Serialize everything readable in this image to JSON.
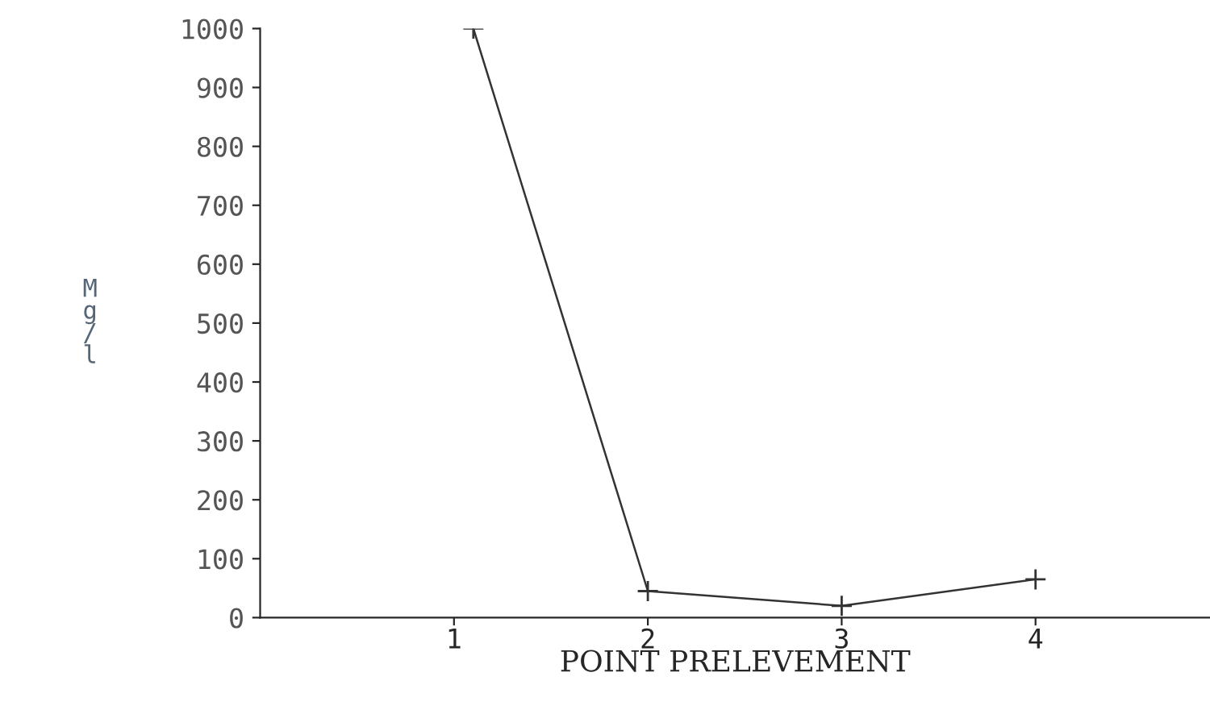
{
  "chart_data": {
    "type": "line",
    "xlabel": "POINT PRELEVEMENT",
    "ylabel": "Mg/l",
    "x": [
      1.1,
      2,
      3,
      4
    ],
    "series": [
      {
        "color": "#333333",
        "values": [
          1000,
          45,
          20,
          65
        ]
      }
    ],
    "xlim": [
      0,
      4.9
    ],
    "xticks": [
      1,
      2,
      3,
      4
    ],
    "ylim": [
      0,
      1000
    ],
    "yticks": [
      0,
      100,
      200,
      300,
      400,
      500,
      600,
      700,
      800,
      900,
      1000
    ],
    "marker": "cross",
    "line_style": "solid",
    "grid": false,
    "legend": false
  }
}
